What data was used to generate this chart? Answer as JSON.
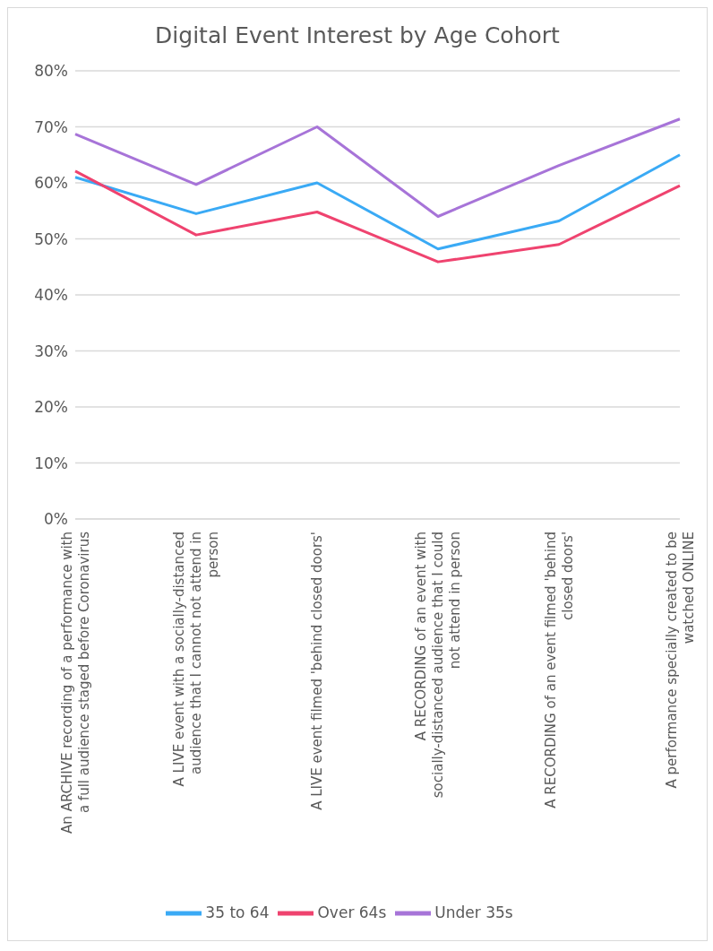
{
  "chart_data": {
    "type": "line",
    "title": "Digital Event Interest by Age Cohort",
    "categories": [
      "An ARCHIVE recording of a performance with a full audience staged before Coronavirus",
      "A LIVE event with a socially-distanced audience that I cannot not attend in person",
      "A LIVE event filmed 'behind closed doors'",
      "A RECORDING of an event with socially-distanced audience that I could not attend in person",
      "A RECORDING of an event filmed 'behind closed doors'",
      "A performance specially created to be watched ONLINE"
    ],
    "series": [
      {
        "name": "Under 35s",
        "color": "#a774d8",
        "values": [
          68.7,
          59.7,
          70.0,
          54.0,
          63.1,
          71.4
        ]
      },
      {
        "name": "35 to 64",
        "color": "#3aaaf5",
        "values": [
          61.0,
          54.5,
          60.0,
          48.2,
          53.2,
          65.0
        ]
      },
      {
        "name": "Over 64s",
        "color": "#ef436f",
        "values": [
          62.1,
          50.7,
          54.8,
          45.9,
          49.0,
          59.5
        ]
      }
    ],
    "ylim": [
      0,
      80
    ],
    "yticks": [
      {
        "value": 0,
        "label": "0%"
      },
      {
        "value": 10,
        "label": "10%"
      },
      {
        "value": 20,
        "label": "20%"
      },
      {
        "value": 30,
        "label": "30%"
      },
      {
        "value": 40,
        "label": "40%"
      },
      {
        "value": 50,
        "label": "50%"
      },
      {
        "value": 60,
        "label": "60%"
      },
      {
        "value": 70,
        "label": "70%"
      },
      {
        "value": 80,
        "label": "80%"
      }
    ],
    "grid": "y",
    "legend": "bottom",
    "marker": "none",
    "line_style": "solid"
  }
}
